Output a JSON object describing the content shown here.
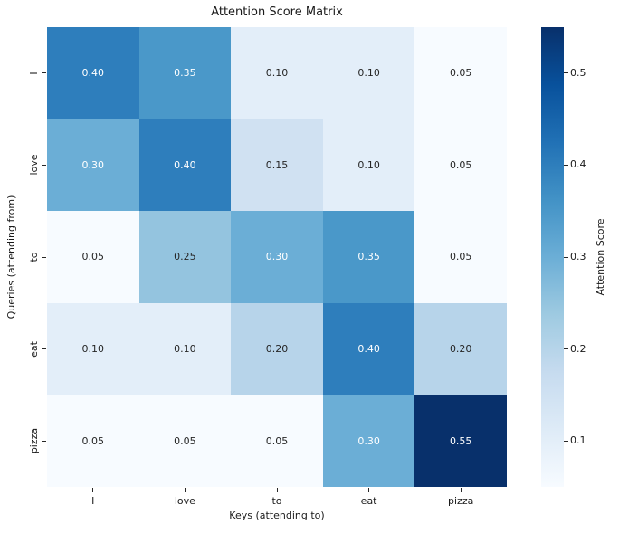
{
  "chart_data": {
    "type": "heatmap",
    "title": "Attention Score Matrix",
    "xlabel": "Keys (attending to)",
    "ylabel": "Queries (attending from)",
    "x_categories": [
      "I",
      "love",
      "to",
      "eat",
      "pizza"
    ],
    "y_categories": [
      "I",
      "love",
      "to",
      "eat",
      "pizza"
    ],
    "matrix": [
      [
        0.4,
        0.35,
        0.1,
        0.1,
        0.05
      ],
      [
        0.3,
        0.4,
        0.15,
        0.1,
        0.05
      ],
      [
        0.05,
        0.25,
        0.3,
        0.35,
        0.05
      ],
      [
        0.1,
        0.1,
        0.2,
        0.4,
        0.2
      ],
      [
        0.05,
        0.05,
        0.05,
        0.3,
        0.55
      ]
    ],
    "annotation_format": "two-decimal",
    "colormap": "Blues",
    "vmin": 0.05,
    "vmax": 0.55,
    "grid": false,
    "colorbar": {
      "label": "Attention Score",
      "ticks": [
        0.1,
        0.2,
        0.3,
        0.4,
        0.5
      ],
      "gradient_stops": [
        "#f7fbff",
        "#deebf7",
        "#c6dbef",
        "#9ecae1",
        "#6baed6",
        "#4292c6",
        "#2171b5",
        "#08519c",
        "#08306b"
      ]
    },
    "value_colors": {
      "0.05": "#f7fbff",
      "0.10": "#e3eef9",
      "0.15": "#d0e1f2",
      "0.20": "#b7d4ea",
      "0.25": "#94c4df",
      "0.30": "#6baed6",
      "0.35": "#4a98c9",
      "0.40": "#2e7ebc",
      "0.55": "#08306b"
    },
    "annotation_colors": {
      "light_cells": "#262626",
      "dark_cells": "#ffffff",
      "white_text_min_value": 0.3
    }
  }
}
